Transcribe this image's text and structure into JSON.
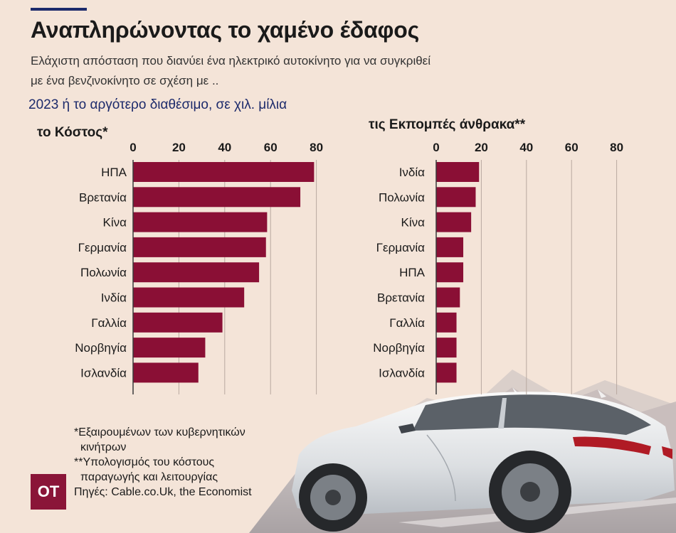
{
  "title": "Αναπληρώνοντας το χαμένο έδαφος",
  "subtitle_line1": "Ελάχιστη απόσταση που διανύει ένα ηλεκτρικό αυτοκίνητο για να συγκριθεί",
  "subtitle_line2": "με ένα βενζινοκίνητο σε σχέση με ..",
  "unit_note": "2023 ή το αργότερο διαθέσιμο, σε χιλ. μίλια",
  "colors": {
    "bar": "#8a0f35",
    "grid": "#b8a8a0",
    "accent": "#1c2a6b",
    "logo": "#8a1538"
  },
  "chart_data": [
    {
      "type": "bar",
      "orientation": "horizontal",
      "title": "το Κόστος*",
      "categories": [
        "ΗΠΑ",
        "Βρετανία",
        "Κίνα",
        "Γερμανία",
        "Πολωνία",
        "Ινδία",
        "Γαλλία",
        "Νορβηγία",
        "Ισλανδία"
      ],
      "values": [
        79,
        73,
        58.5,
        58,
        55,
        48.5,
        39,
        31.5,
        28.5
      ],
      "xlim": [
        0,
        80
      ],
      "ticks": [
        0,
        20,
        40,
        60,
        80
      ],
      "grid": true
    },
    {
      "type": "bar",
      "orientation": "horizontal",
      "title": "τις Εκπομπές άνθρακα**",
      "categories": [
        "Ινδία",
        "Πολωνία",
        "Κίνα",
        "Γερμανία",
        "ΗΠΑ",
        "Βρετανία",
        "Γαλλία",
        "Νορβηγία",
        "Ισλανδία"
      ],
      "values": [
        19,
        17.5,
        15.5,
        12,
        12,
        10.5,
        9,
        9,
        9
      ],
      "xlim": [
        0,
        80
      ],
      "ticks": [
        0,
        20,
        40,
        60,
        80
      ],
      "grid": true
    }
  ],
  "footnotes": {
    "note1_line1": "*Εξαιρουμένων των κυβερνητικών",
    "note1_line2": "κινήτρων",
    "note2_line1": "**Υπολογισμός του κόστους",
    "note2_line2": "παραγωγής και λειτουργίας",
    "sources": "Πηγές: Cable.co.Uk, the Economist"
  },
  "logo_text": "OT",
  "illustration": {
    "subject": "white-electric-suv-car",
    "background": "mountains-and-road"
  }
}
